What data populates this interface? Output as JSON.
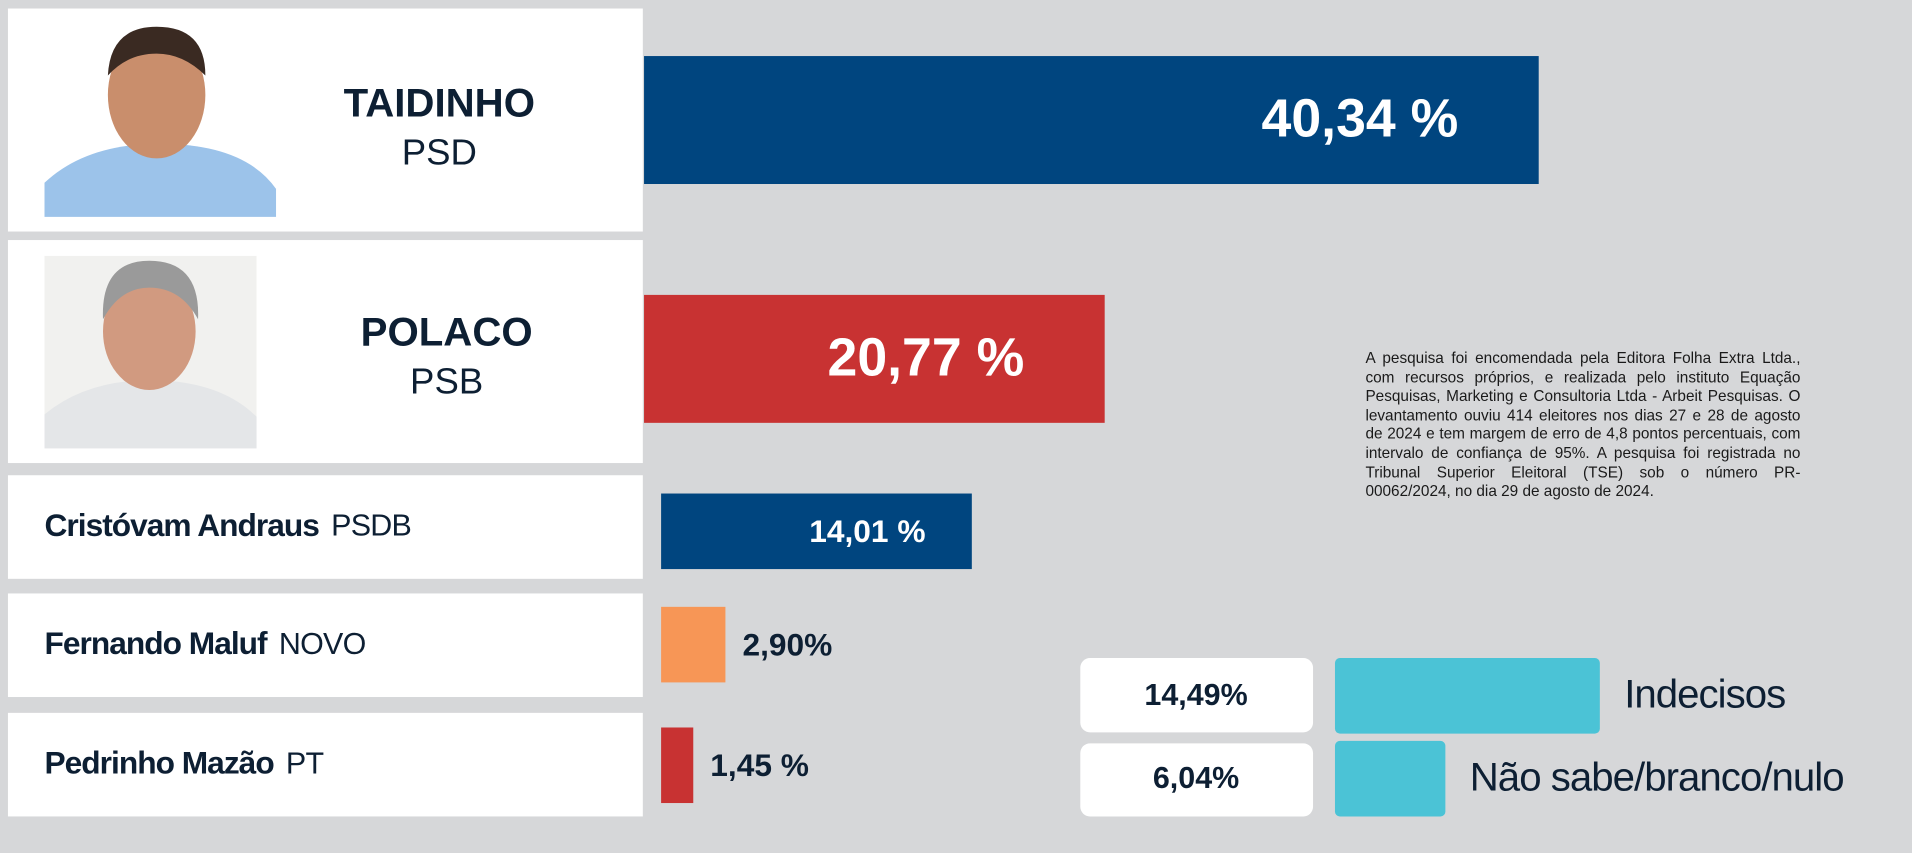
{
  "chart_data": {
    "type": "bar",
    "categories": [
      "TAIDINHO",
      "POLACO",
      "Cristóvam Andraus",
      "Fernando Maluf",
      "Pedrinho Mazão"
    ],
    "parties": [
      "PSD",
      "PSB",
      "PSDB",
      "NOVO",
      "PT"
    ],
    "values": [
      40.34,
      20.77,
      14.01,
      2.9,
      1.45
    ],
    "value_labels": [
      "40,34 %",
      "20,77 %",
      "14,01 %",
      "2,90%",
      "1,45 %"
    ],
    "colors": [
      "#00457f",
      "#c83232",
      "#00457f",
      "#f79656",
      "#c83232"
    ],
    "note": "A pesquisa foi encomendada pela Editora Folha Extra Ltda., com recursos próprios, e realizada pelo instituto Equação Pesquisas, Marketing e Consultoria Ltda - Arbeit Pesquisas. O levantamento ouviu 414 eleitores nos dias 27 e 28 de agosto de 2024 e tem margem de erro de 4,8 pontos percentuais, com intervalo de confiança de 95%. A pesquisa foi registrada no Tribunal Superior Eleitoral (TSE) sob o número PR-00062/2024, no dia 29 de agosto de 2024.",
    "others": {
      "categories": [
        "Indecisos",
        "Não sabe/branco/nulo"
      ],
      "values": [
        14.49,
        6.04
      ],
      "value_labels": [
        "14,49%",
        "6,04%"
      ],
      "color": "#4bc3d6"
    }
  }
}
